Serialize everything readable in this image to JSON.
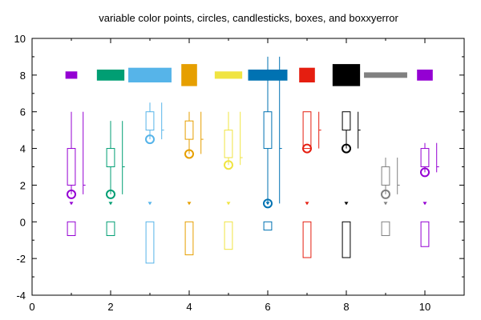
{
  "chart_data": {
    "type": "boxplot",
    "title": "variable color points, circles, candlesticks, boxes, and boxxyerror",
    "xlim": [
      0,
      11
    ],
    "ylim": [
      -4,
      10
    ],
    "xticks": [
      0,
      2,
      4,
      6,
      8,
      10
    ],
    "yticks": [
      -4,
      -2,
      0,
      2,
      4,
      6,
      8,
      10
    ],
    "grid": false,
    "colors": [
      "#9400d3",
      "#009e73",
      "#56b4e9",
      "#e69f00",
      "#f0e442",
      "#0072b2",
      "#e51e10",
      "#000000",
      "#808080",
      "#9400d3"
    ],
    "groups": [
      {
        "x": 1,
        "point": 1,
        "circle": 1.5,
        "candle": {
          "min": 1.5,
          "q1": 2.0,
          "median": 2.0,
          "q3": 4.0,
          "max": 6.0
        },
        "box": -0.75,
        "boxxy": {
          "xlow": 0.85,
          "xhigh": 1.15,
          "y": 8.0,
          "ylow": 7.8,
          "yhigh": 8.2
        }
      },
      {
        "x": 2,
        "point": 1,
        "circle": 1.5,
        "candle": {
          "min": 1.5,
          "q1": 3.0,
          "median": 3.0,
          "q3": 4.0,
          "max": 5.5
        },
        "box": -0.75,
        "boxxy": {
          "xlow": 1.65,
          "xhigh": 2.35,
          "y": 8.0,
          "ylow": 7.7,
          "yhigh": 8.3
        }
      },
      {
        "x": 3,
        "point": 1,
        "circle": 4.5,
        "candle": {
          "min": 4.5,
          "q1": 5.0,
          "median": 5.0,
          "q3": 6.0,
          "max": 6.5
        },
        "box": -2.25,
        "boxxy": {
          "xlow": 2.45,
          "xhigh": 3.55,
          "y": 8.0,
          "ylow": 7.6,
          "yhigh": 8.4
        }
      },
      {
        "x": 4,
        "point": 1,
        "circle": 3.7,
        "candle": {
          "min": 3.7,
          "q1": 4.5,
          "median": 4.5,
          "q3": 5.5,
          "max": 6.0
        },
        "box": -1.8,
        "boxxy": {
          "xlow": 3.8,
          "xhigh": 4.2,
          "y": 8.0,
          "ylow": 7.4,
          "yhigh": 8.6
        }
      },
      {
        "x": 5,
        "point": 1,
        "circle": 3.1,
        "candle": {
          "min": 3.1,
          "q1": 3.5,
          "median": 3.5,
          "q3": 5.0,
          "max": 6.0
        },
        "box": -1.5,
        "boxxy": {
          "xlow": 4.65,
          "xhigh": 5.35,
          "y": 8.0,
          "ylow": 7.8,
          "yhigh": 8.2
        }
      },
      {
        "x": 6,
        "point": 1,
        "circle": 1.0,
        "candle": {
          "min": 1.0,
          "q1": 4.0,
          "median": 4.0,
          "q3": 6.0,
          "max": 9.0
        },
        "box": -0.45,
        "boxxy": {
          "xlow": 5.5,
          "xhigh": 6.5,
          "y": 8.0,
          "ylow": 7.7,
          "yhigh": 8.3
        }
      },
      {
        "x": 7,
        "point": 1,
        "circle": 4.0,
        "candle": {
          "min": 4.0,
          "q1": 4.0,
          "median": 5.0,
          "q3": 6.0,
          "max": 6.0
        },
        "box": -1.95,
        "boxxy": {
          "xlow": 6.8,
          "xhigh": 7.2,
          "y": 8.0,
          "ylow": 7.6,
          "yhigh": 8.4
        }
      },
      {
        "x": 8,
        "point": 1,
        "circle": 4.0,
        "candle": {
          "min": 4.0,
          "q1": 5.0,
          "median": 5.0,
          "q3": 6.0,
          "max": 6.0
        },
        "box": -1.95,
        "boxxy": {
          "xlow": 7.65,
          "xhigh": 8.35,
          "y": 8.0,
          "ylow": 7.4,
          "yhigh": 8.6
        }
      },
      {
        "x": 9,
        "point": 1,
        "circle": 1.5,
        "candle": {
          "min": 1.5,
          "q1": 2.0,
          "median": 2.0,
          "q3": 3.0,
          "max": 3.5
        },
        "box": -0.75,
        "boxxy": {
          "xlow": 8.45,
          "xhigh": 9.55,
          "y": 8.0,
          "ylow": 7.85,
          "yhigh": 8.15
        }
      },
      {
        "x": 10,
        "point": 1,
        "circle": 2.7,
        "candle": {
          "min": 2.7,
          "q1": 3.0,
          "median": 3.0,
          "q3": 4.0,
          "max": 4.3
        },
        "box": -1.35,
        "boxxy": {
          "xlow": 9.8,
          "xhigh": 10.2,
          "y": 8.0,
          "ylow": 7.7,
          "yhigh": 8.3
        }
      }
    ]
  }
}
